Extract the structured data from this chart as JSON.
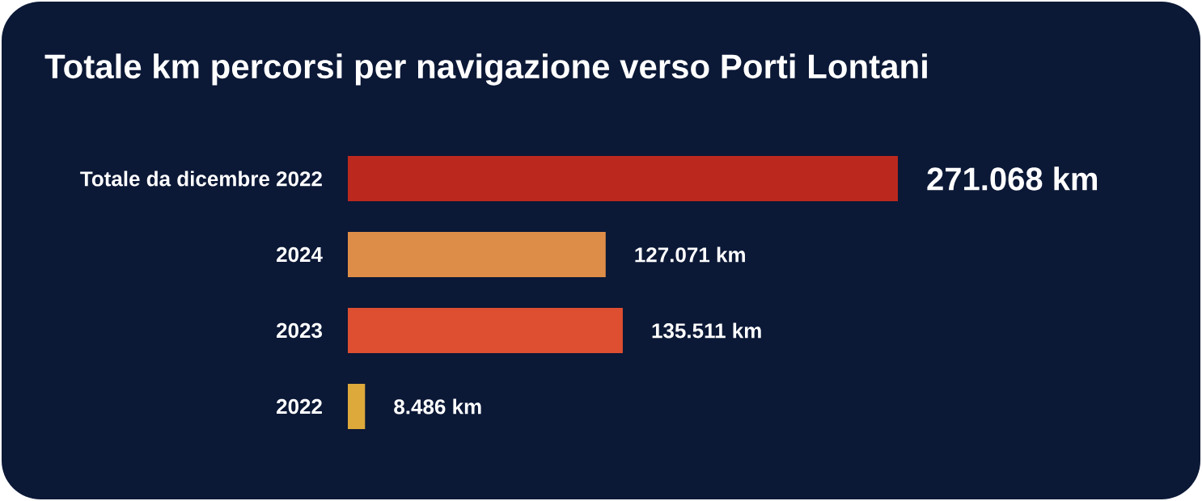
{
  "chart_data": {
    "type": "bar",
    "orientation": "horizontal",
    "title": "Totale km percorsi per navigazione verso Porti Lontani",
    "categories": [
      "Totale da dicembre 2022",
      "2024",
      "2023",
      "2022"
    ],
    "values": [
      271068,
      127071,
      135511,
      8486
    ],
    "colors": [
      "#bb281e",
      "#de8d48",
      "#dd4f30",
      "#dca93a"
    ],
    "value_labels": [
      "271.068 km",
      "127.071 km",
      "135.511 km",
      "8.486 km"
    ]
  }
}
